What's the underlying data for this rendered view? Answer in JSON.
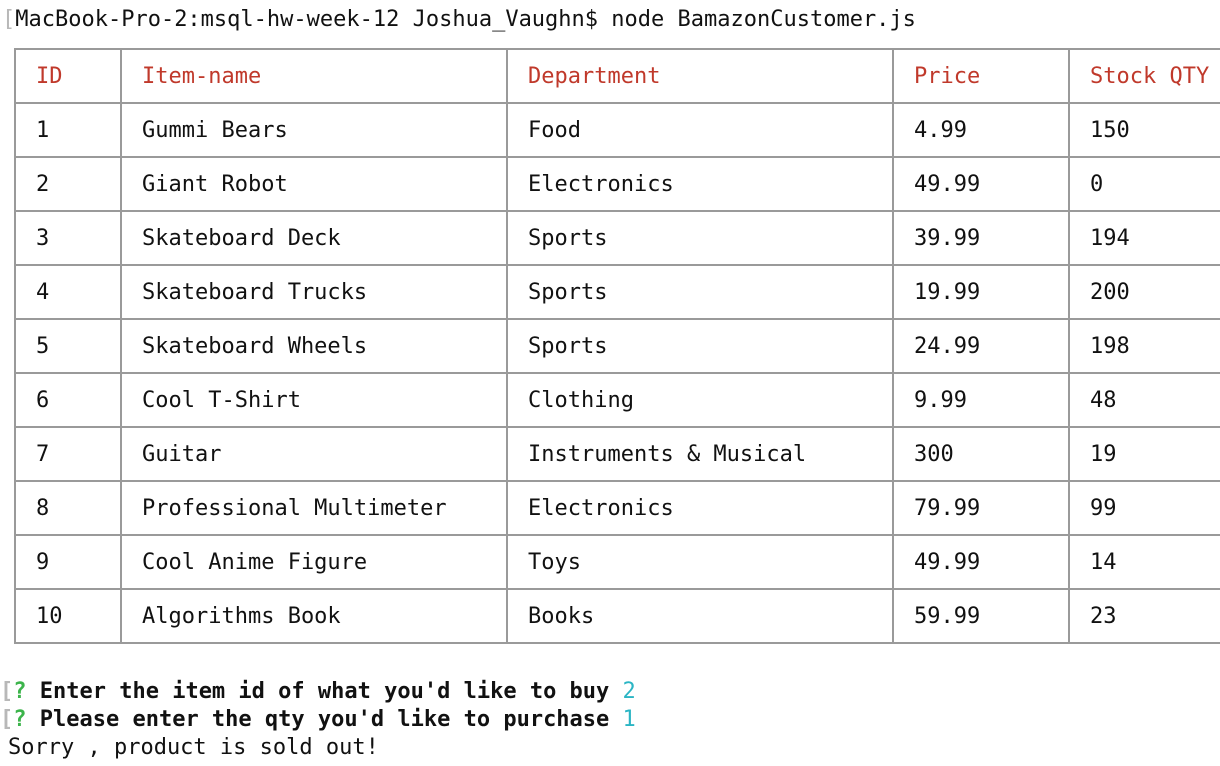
{
  "terminal": {
    "bracket_char": "[",
    "command_line": "MacBook-Pro-2:msql-hw-week-12 Joshua_Vaughn$ node BamazonCustomer.js"
  },
  "table": {
    "headers": [
      "ID",
      "Item-name",
      "Department",
      "Price",
      "Stock QTY"
    ],
    "rows": [
      [
        "1",
        "Gummi Bears",
        "Food",
        "4.99",
        "150"
      ],
      [
        "2",
        "Giant Robot",
        "Electronics",
        "49.99",
        "0"
      ],
      [
        "3",
        "Skateboard Deck",
        "Sports",
        "39.99",
        "194"
      ],
      [
        "4",
        "Skateboard Trucks",
        "Sports",
        "19.99",
        "200"
      ],
      [
        "5",
        "Skateboard Wheels",
        "Sports",
        "24.99",
        "198"
      ],
      [
        "6",
        "Cool T-Shirt",
        "Clothing",
        "9.99",
        "48"
      ],
      [
        "7",
        "Guitar",
        "Instruments & Musical",
        "300",
        "19"
      ],
      [
        "8",
        "Professional Multimeter",
        "Electronics",
        "79.99",
        "99"
      ],
      [
        "9",
        "Cool Anime Figure",
        "Toys",
        "49.99",
        "14"
      ],
      [
        "10",
        "Algorithms Book",
        "Books",
        "59.99",
        "23"
      ]
    ]
  },
  "prompts": [
    {
      "mark": "?",
      "question": "Enter the item id of what you'd like to buy",
      "answer": "2"
    },
    {
      "mark": "?",
      "question": "Please enter the qty you'd like to purchase",
      "answer": "1"
    }
  ],
  "result_message": "Sorry , product is sold out!",
  "colors": {
    "header_text": "#c0392b",
    "prompt_mark": "#3cb44b",
    "answer_text": "#2bb5c4",
    "table_border": "#9a9a9a"
  }
}
